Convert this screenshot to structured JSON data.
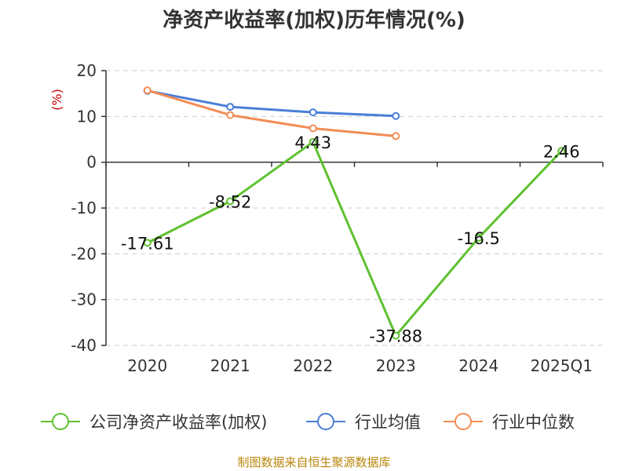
{
  "chart_data": {
    "type": "line",
    "title": "净资产收益率(加权)历年情况(%)",
    "ylabel": "(%)",
    "xlabel": "",
    "categories": [
      "2020",
      "2021",
      "2022",
      "2023",
      "2024",
      "2025Q1"
    ],
    "ylim": [
      -40,
      20
    ],
    "yticks": [
      20,
      10,
      0,
      -10,
      -20,
      -30,
      -40
    ],
    "grid": true,
    "legend_position": "bottom",
    "series": [
      {
        "name": "公司净资产收益率(加权)",
        "color": "#5ec12f",
        "values": [
          -17.61,
          -8.52,
          4.43,
          -37.88,
          -16.5,
          2.46
        ],
        "labels": [
          "-17.61",
          "-8.52",
          "4.43",
          "-37.88",
          "-16.5",
          "2.46"
        ]
      },
      {
        "name": "行业均值",
        "color": "#4a7fd8",
        "values": [
          15.6,
          12.1,
          10.9,
          10.1,
          null,
          null
        ]
      },
      {
        "name": "行业中位数",
        "color": "#f28c55",
        "values": [
          15.7,
          10.3,
          7.4,
          5.7,
          null,
          null
        ]
      }
    ]
  },
  "source": "制图数据来自恒生聚源数据库"
}
